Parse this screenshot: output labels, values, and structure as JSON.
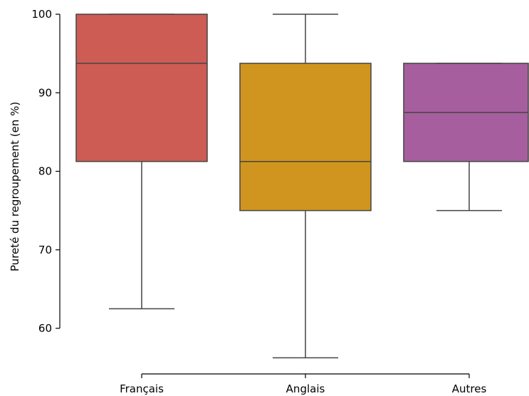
{
  "chart_data": {
    "type": "box",
    "title": "",
    "xlabel": "",
    "ylabel": "Pureté du regroupement (en %)",
    "ylim": [
      54,
      100
    ],
    "yticks": [
      60,
      70,
      80,
      90,
      100
    ],
    "categories": [
      "Français",
      "Anglais",
      "Autres"
    ],
    "boxes": [
      {
        "category": "Français",
        "whisker_low": 62.5,
        "q1": 81.25,
        "median": 93.75,
        "q3": 100,
        "whisker_high": 100,
        "color": "#cd5c55"
      },
      {
        "category": "Anglais",
        "whisker_low": 56.25,
        "q1": 75,
        "median": 81.25,
        "q3": 93.75,
        "whisker_high": 100,
        "color": "#d0951f"
      },
      {
        "category": "Autres",
        "whisker_low": 75,
        "q1": 81.25,
        "median": 87.5,
        "q3": 93.75,
        "whisker_high": 93.75,
        "color": "#a65e9e"
      }
    ],
    "line_color": "#444444",
    "grid": false
  }
}
